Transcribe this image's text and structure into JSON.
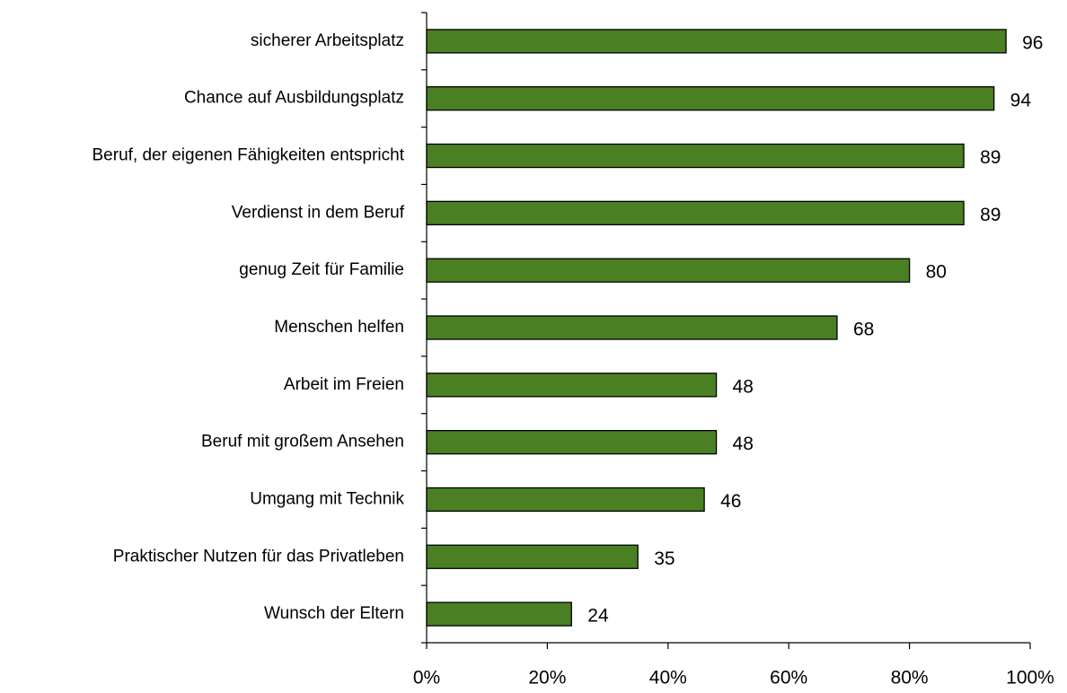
{
  "chart_data": {
    "type": "bar",
    "orientation": "horizontal",
    "categories": [
      "sicherer Arbeitsplatz",
      "Chance auf Ausbildungsplatz",
      "Beruf, der eigenen Fähigkeiten entspricht",
      "Verdienst in dem Beruf",
      "genug Zeit für Familie",
      "Menschen helfen",
      "Arbeit im Freien",
      "Beruf mit großem Ansehen",
      "Umgang mit Technik",
      "Praktischer Nutzen für das Privatleben",
      "Wunsch der Eltern"
    ],
    "values": [
      96,
      94,
      89,
      89,
      80,
      68,
      48,
      48,
      46,
      35,
      24
    ],
    "color": "#4a7f23",
    "xlim": [
      0,
      100
    ],
    "xticks": [
      {
        "value": 0,
        "label": "0%"
      },
      {
        "value": 20,
        "label": "20%"
      },
      {
        "value": 40,
        "label": "40%"
      },
      {
        "value": 60,
        "label": "60%"
      },
      {
        "value": 80,
        "label": "80%"
      },
      {
        "value": 100,
        "label": "100%"
      }
    ],
    "grid": false
  }
}
